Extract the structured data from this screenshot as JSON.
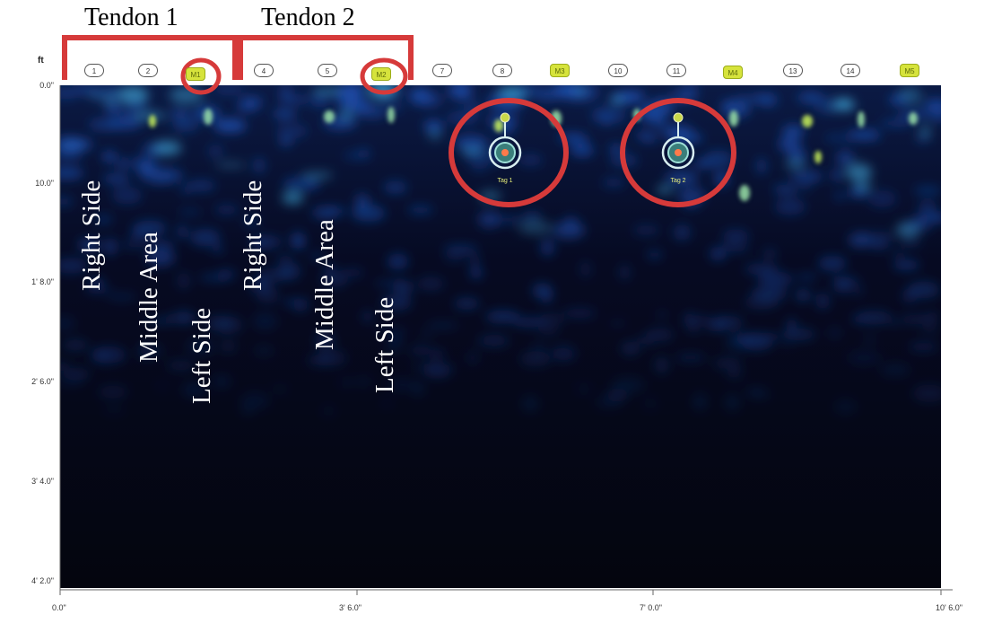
{
  "scan": {
    "unit_label": "ft",
    "y_ticks": [
      "0.0\"",
      "10.0\"",
      "1' 8.0\"",
      "2' 6.0\"",
      "3' 4.0\"",
      "4' 2.0\""
    ],
    "x_ticks": [
      "0.0\"",
      "3' 6.0\"",
      "7' 0.0\"",
      "10' 6.0\""
    ],
    "markers": [
      {
        "label": "1",
        "kind": "number"
      },
      {
        "label": "2",
        "kind": "number"
      },
      {
        "label": "M1",
        "kind": "tag"
      },
      {
        "label": "4",
        "kind": "number"
      },
      {
        "label": "5",
        "kind": "number"
      },
      {
        "label": "M2",
        "kind": "tag"
      },
      {
        "label": "7",
        "kind": "number"
      },
      {
        "label": "8",
        "kind": "number"
      },
      {
        "label": "M3",
        "kind": "tag"
      },
      {
        "label": "10",
        "kind": "number"
      },
      {
        "label": "11",
        "kind": "number"
      },
      {
        "label": "M4",
        "kind": "tag"
      },
      {
        "label": "13",
        "kind": "number"
      },
      {
        "label": "14",
        "kind": "number"
      },
      {
        "label": "M5",
        "kind": "tag"
      }
    ],
    "tags": [
      {
        "label": "Tag 1"
      },
      {
        "label": "Tag 2"
      }
    ]
  },
  "annotations": {
    "tendon1": {
      "title": "Tendon 1",
      "right": "Right Side",
      "middle": "Middle Area",
      "left": "Left Side"
    },
    "tendon2": {
      "title": "Tendon 2",
      "right": "Right Side",
      "middle": "Middle Area",
      "left": "Left Side"
    }
  },
  "colors": {
    "background": "#04050e",
    "signal_low": "#123a8c",
    "signal_high": "#c9f25a",
    "highlight": "#d63a3a",
    "tag_fill": "#d6e33c"
  }
}
